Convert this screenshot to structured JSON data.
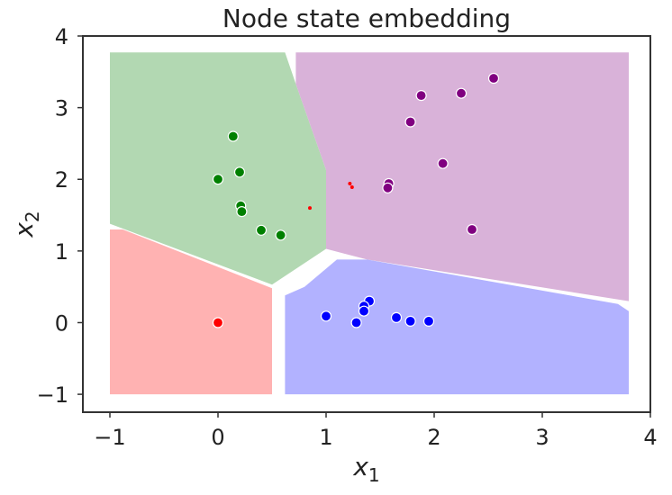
{
  "chart_data": {
    "type": "scatter",
    "title": "Node state embedding",
    "xlabel": {
      "main": "x",
      "sub": "1"
    },
    "ylabel": {
      "main": "x",
      "sub": "2"
    },
    "xlim": [
      -1.25,
      4.0
    ],
    "ylim": [
      -1.25,
      4.0
    ],
    "xticks": [
      -1,
      0,
      1,
      2,
      3,
      4
    ],
    "yticks": [
      -1,
      0,
      1,
      2,
      3,
      4
    ],
    "xtick_labels": [
      "−1",
      "0",
      "1",
      "2",
      "3",
      "4"
    ],
    "ytick_labels": [
      "−1",
      "0",
      "1",
      "2",
      "3",
      "4"
    ],
    "grid": false,
    "colors": {
      "green": "#008000",
      "purple": "#800080",
      "red": "#ff0000",
      "blue": "#0000ff",
      "green_region": "#b2d8b2",
      "purple_region": "#d9b2d9",
      "red_region": "#ffb2b2",
      "blue_region": "#b2b2ff"
    },
    "regions": [
      {
        "name": "green",
        "points": [
          [
            -1.0,
            3.77
          ],
          [
            0.62,
            3.77
          ],
          [
            0.72,
            3.33
          ],
          [
            1.0,
            2.13
          ],
          [
            1.0,
            1.03
          ],
          [
            0.5,
            0.53
          ],
          [
            -1.0,
            1.38
          ]
        ]
      },
      {
        "name": "purple",
        "points": [
          [
            0.72,
            3.77
          ],
          [
            3.8,
            3.77
          ],
          [
            3.8,
            0.3
          ],
          [
            1.38,
            0.88
          ],
          [
            1.0,
            1.03
          ],
          [
            1.0,
            2.13
          ],
          [
            0.72,
            3.33
          ]
        ]
      },
      {
        "name": "red",
        "points": [
          [
            -1.0,
            1.3
          ],
          [
            -0.88,
            1.3
          ],
          [
            0.5,
            0.48
          ],
          [
            0.5,
            -1.0
          ],
          [
            -1.0,
            -1.0
          ]
        ]
      },
      {
        "name": "blue",
        "points": [
          [
            0.62,
            0.38
          ],
          [
            0.8,
            0.5
          ],
          [
            1.1,
            0.88
          ],
          [
            1.38,
            0.88
          ],
          [
            3.7,
            0.26
          ],
          [
            3.8,
            0.16
          ],
          [
            3.8,
            -1.0
          ],
          [
            0.62,
            -1.0
          ]
        ]
      }
    ],
    "series": [
      {
        "color": "green",
        "points": [
          [
            0.14,
            2.6
          ],
          [
            0.2,
            2.1
          ],
          [
            0.0,
            2.0
          ],
          [
            0.21,
            1.63
          ],
          [
            0.22,
            1.55
          ],
          [
            0.4,
            1.29
          ],
          [
            0.58,
            1.22
          ]
        ]
      },
      {
        "color": "purple",
        "points": [
          [
            2.55,
            3.41
          ],
          [
            2.25,
            3.2
          ],
          [
            1.88,
            3.17
          ],
          [
            1.78,
            2.8
          ],
          [
            2.08,
            2.22
          ],
          [
            1.58,
            1.94
          ],
          [
            1.57,
            1.88
          ],
          [
            2.35,
            1.3
          ]
        ]
      },
      {
        "color": "red",
        "points": [
          [
            0.0,
            0.0
          ]
        ]
      },
      {
        "color": "blue",
        "points": [
          [
            1.0,
            0.09
          ],
          [
            1.4,
            0.3
          ],
          [
            1.35,
            0.23
          ],
          [
            1.35,
            0.16
          ],
          [
            1.28,
            0.0
          ],
          [
            1.65,
            0.07
          ],
          [
            1.78,
            0.02
          ],
          [
            1.95,
            0.02
          ]
        ]
      }
    ],
    "small_points": [
      {
        "color": "red",
        "points": [
          [
            1.22,
            1.94
          ],
          [
            1.24,
            1.89
          ],
          [
            0.85,
            1.6
          ]
        ]
      }
    ]
  }
}
